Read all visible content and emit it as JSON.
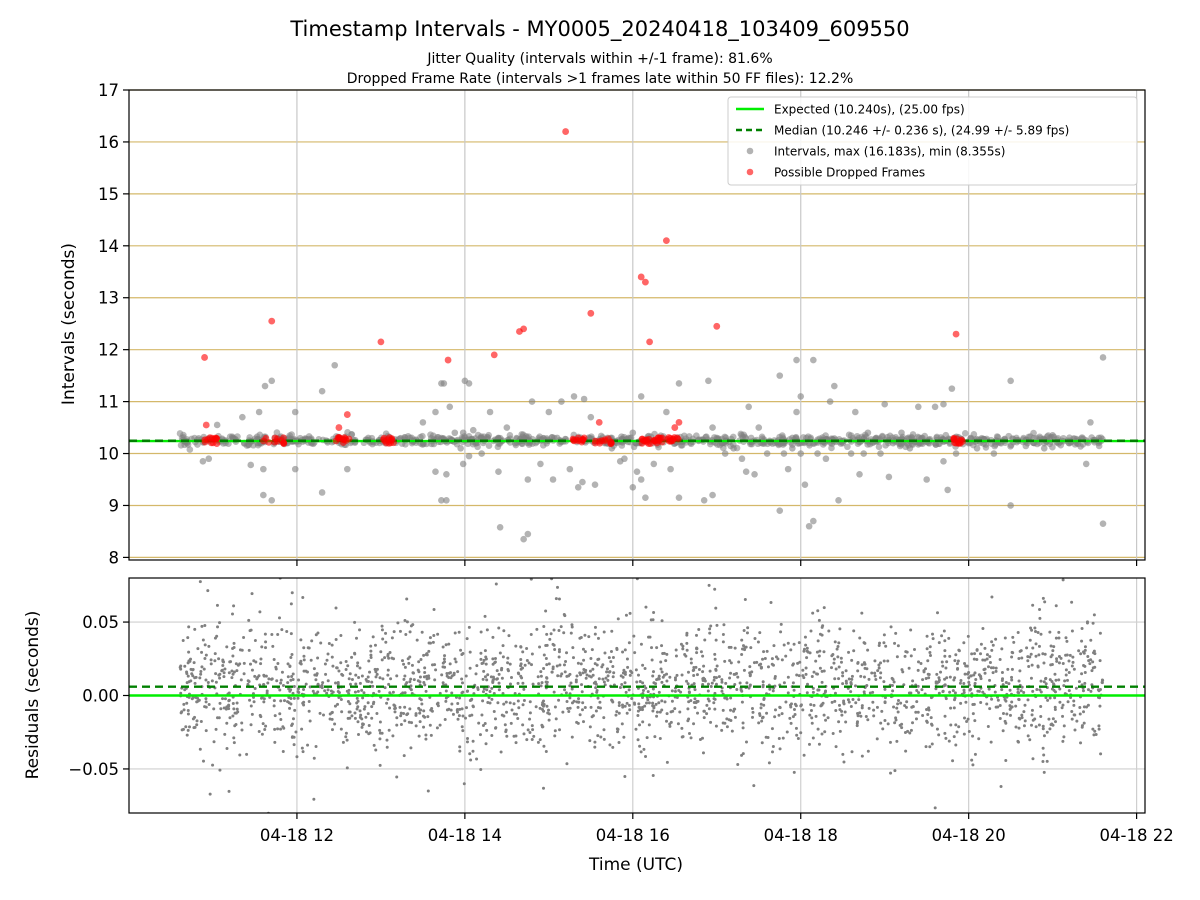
{
  "chart_data": [
    {
      "type": "scatter",
      "title": "Timestamp Intervals - MY0005_20240418_103409_609550",
      "subtitle_lines": [
        "Jitter Quality (intervals within +/-1 frame): 81.6%",
        "Dropped Frame Rate (intervals >1 frames late within 50 FF files): 12.2%"
      ],
      "xlabel": "",
      "ylabel": "Intervals (seconds)",
      "xlim": [
        10.0,
        22.1
      ],
      "ylim": [
        7.95,
        17.0
      ],
      "yticks": [
        8,
        9,
        10,
        11,
        12,
        13,
        14,
        15,
        16,
        17
      ],
      "xticks": [
        12,
        14,
        16,
        18,
        20,
        22
      ],
      "grid": "on (horizontal lines tan, vertical lines grey)",
      "legend_placement": "top-right",
      "reference_lines": [
        {
          "name": "Expected (10.240s), (25.00 fps)",
          "y": 10.24,
          "color": "#00ee00",
          "style": "solid"
        },
        {
          "name": "Median (10.246 +/- 0.236 s), (24.99 +/- 5.89 fps)",
          "y": 10.246,
          "color": "#008000",
          "style": "dashed"
        }
      ],
      "series": [
        {
          "name": "Intervals, max (16.183s), min (8.355s)",
          "color": "#808080",
          "baseline": 10.25,
          "x_range": [
            10.6,
            21.6
          ],
          "outliers": [
            [
              10.88,
              9.85
            ],
            [
              10.95,
              9.9
            ],
            [
              11.05,
              10.55
            ],
            [
              11.35,
              10.7
            ],
            [
              11.45,
              9.78
            ],
            [
              11.6,
              9.2
            ],
            [
              11.55,
              10.8
            ],
            [
              11.7,
              9.1
            ],
            [
              11.62,
              11.3
            ],
            [
              11.7,
              11.4
            ],
            [
              11.6,
              9.7
            ],
            [
              11.98,
              10.8
            ],
            [
              11.98,
              9.7
            ],
            [
              12.3,
              11.2
            ],
            [
              12.3,
              9.25
            ],
            [
              12.45,
              11.7
            ],
            [
              12.6,
              9.7
            ],
            [
              12.85,
              10.3
            ],
            [
              13.5,
              10.6
            ],
            [
              13.65,
              10.8
            ],
            [
              13.65,
              9.65
            ],
            [
              13.72,
              11.35
            ],
            [
              13.75,
              11.35
            ],
            [
              13.78,
              9.6
            ],
            [
              13.72,
              9.1
            ],
            [
              13.78,
              9.1
            ],
            [
              13.82,
              10.9
            ],
            [
              13.88,
              10.4
            ],
            [
              13.95,
              10.1
            ],
            [
              13.98,
              10.4
            ],
            [
              14.0,
              10.3
            ],
            [
              13.98,
              9.8
            ],
            [
              14.05,
              9.95
            ],
            [
              14.0,
              11.4
            ],
            [
              14.05,
              11.35
            ],
            [
              14.1,
              10.45
            ],
            [
              14.2,
              10.0
            ],
            [
              14.3,
              10.8
            ],
            [
              14.4,
              9.65
            ],
            [
              14.4,
              10.3
            ],
            [
              14.42,
              8.58
            ],
            [
              14.5,
              10.5
            ],
            [
              14.6,
              10.2
            ],
            [
              14.75,
              9.5
            ],
            [
              14.8,
              11.0
            ],
            [
              14.7,
              8.35
            ],
            [
              14.75,
              8.45
            ],
            [
              14.9,
              9.8
            ],
            [
              15.0,
              10.8
            ],
            [
              15.05,
              9.5
            ],
            [
              15.1,
              10.3
            ],
            [
              15.15,
              11.0
            ],
            [
              15.25,
              9.7
            ],
            [
              15.3,
              11.1
            ],
            [
              15.35,
              9.35
            ],
            [
              15.4,
              9.45
            ],
            [
              15.42,
              11.05
            ],
            [
              15.5,
              10.7
            ],
            [
              15.55,
              9.4
            ],
            [
              15.7,
              10.3
            ],
            [
              15.75,
              10.1
            ],
            [
              15.85,
              9.85
            ],
            [
              15.9,
              9.9
            ],
            [
              15.95,
              10.3
            ],
            [
              16.0,
              10.4
            ],
            [
              16.05,
              9.65
            ],
            [
              16.1,
              11.1
            ],
            [
              16.0,
              9.35
            ],
            [
              16.1,
              9.5
            ],
            [
              16.15,
              9.15
            ],
            [
              16.25,
              9.8
            ],
            [
              16.4,
              10.8
            ],
            [
              16.45,
              9.7
            ],
            [
              16.5,
              10.2
            ],
            [
              16.55,
              11.35
            ],
            [
              16.55,
              9.15
            ],
            [
              16.9,
              11.4
            ],
            [
              16.95,
              10.5
            ],
            [
              16.85,
              9.1
            ],
            [
              16.95,
              9.2
            ],
            [
              17.0,
              10.3
            ],
            [
              17.1,
              10.0
            ],
            [
              17.2,
              10.1
            ],
            [
              17.3,
              9.9
            ],
            [
              17.35,
              9.65
            ],
            [
              17.38,
              10.9
            ],
            [
              17.45,
              9.6
            ],
            [
              17.5,
              10.5
            ],
            [
              17.6,
              10.0
            ],
            [
              17.75,
              11.5
            ],
            [
              17.8,
              10.0
            ],
            [
              17.85,
              9.7
            ],
            [
              17.9,
              10.3
            ],
            [
              17.95,
              10.8
            ],
            [
              17.75,
              8.9
            ],
            [
              17.9,
              10.1
            ],
            [
              18.0,
              10.0
            ],
            [
              18.1,
              10.2
            ],
            [
              17.95,
              11.8
            ],
            [
              18.15,
              11.8
            ],
            [
              18.0,
              11.1
            ],
            [
              18.05,
              9.4
            ],
            [
              18.1,
              8.6
            ],
            [
              18.15,
              8.7
            ],
            [
              18.2,
              10.0
            ],
            [
              18.3,
              9.9
            ],
            [
              18.35,
              11.0
            ],
            [
              18.4,
              11.3
            ],
            [
              18.45,
              9.1
            ],
            [
              18.5,
              10.2
            ],
            [
              18.6,
              10.0
            ],
            [
              18.65,
              10.8
            ],
            [
              18.7,
              9.6
            ],
            [
              18.75,
              10.0
            ],
            [
              18.8,
              10.4
            ],
            [
              18.9,
              10.3
            ],
            [
              18.95,
              10.0
            ],
            [
              19.0,
              10.95
            ],
            [
              19.05,
              9.55
            ],
            [
              19.1,
              10.2
            ],
            [
              19.2,
              10.4
            ],
            [
              19.3,
              10.1
            ],
            [
              19.4,
              10.9
            ],
            [
              19.5,
              9.5
            ],
            [
              19.6,
              10.9
            ],
            [
              19.7,
              9.85
            ],
            [
              19.7,
              10.95
            ],
            [
              19.75,
              9.3
            ],
            [
              19.8,
              11.25
            ],
            [
              19.85,
              10.0
            ],
            [
              20.0,
              10.2
            ],
            [
              20.1,
              10.1
            ],
            [
              20.3,
              10.0
            ],
            [
              20.5,
              9.0
            ],
            [
              20.5,
              11.4
            ],
            [
              20.7,
              10.2
            ],
            [
              20.9,
              10.1
            ],
            [
              21.0,
              10.35
            ],
            [
              21.2,
              10.2
            ],
            [
              21.4,
              9.8
            ],
            [
              21.45,
              10.6
            ],
            [
              21.6,
              11.85
            ],
            [
              21.6,
              8.65
            ],
            [
              21.55,
              10.3
            ]
          ]
        },
        {
          "name": "Possible Dropped Frames",
          "color": "#ff0000",
          "points": [
            [
              10.9,
              11.85
            ],
            [
              10.92,
              10.55
            ],
            [
              11.7,
              12.55
            ],
            [
              12.5,
              10.5
            ],
            [
              12.6,
              10.75
            ],
            [
              13.0,
              12.15
            ],
            [
              13.8,
              11.8
            ],
            [
              14.35,
              11.9
            ],
            [
              14.65,
              12.35
            ],
            [
              14.7,
              12.4
            ],
            [
              15.2,
              16.2
            ],
            [
              15.5,
              12.7
            ],
            [
              15.6,
              10.6
            ],
            [
              16.1,
              13.4
            ],
            [
              16.15,
              13.3
            ],
            [
              16.2,
              12.15
            ],
            [
              16.35,
              10.3
            ],
            [
              16.4,
              14.1
            ],
            [
              16.5,
              10.5
            ],
            [
              16.55,
              10.6
            ],
            [
              17.0,
              12.45
            ],
            [
              19.85,
              12.3
            ]
          ],
          "baseline_clusters": [
            [
              10.9,
              11.05
            ],
            [
              11.6,
              11.85
            ],
            [
              12.45,
              12.65
            ],
            [
              13.0,
              13.15
            ],
            [
              15.25,
              15.5
            ],
            [
              15.55,
              15.75
            ],
            [
              16.1,
              16.25
            ],
            [
              16.25,
              16.35
            ],
            [
              16.4,
              16.55
            ],
            [
              19.8,
              19.95
            ]
          ],
          "baseline_y": 10.25
        }
      ]
    },
    {
      "type": "scatter",
      "title": "",
      "xlabel": "Time (UTC)",
      "ylabel": "Residuals (seconds)",
      "xlim": [
        10.0,
        22.1
      ],
      "ylim": [
        -0.08,
        0.08
      ],
      "yticks": [
        0.05,
        0.0,
        -0.05
      ],
      "ytick_labels": [
        "0.05",
        "0.00",
        "−0.05"
      ],
      "xticks": [
        12,
        14,
        16,
        18,
        20,
        22
      ],
      "xtick_labels": [
        "04-18 12",
        "04-18 14",
        "04-18 16",
        "04-18 18",
        "04-18 20",
        "04-18 22"
      ],
      "grid": "on",
      "reference_lines": [
        {
          "y": 0.0,
          "color": "#00ee00",
          "style": "solid"
        },
        {
          "y": 0.006,
          "color": "#008000",
          "style": "dashed"
        }
      ],
      "series": [
        {
          "color": "#808080",
          "x_range": [
            10.6,
            21.6
          ],
          "spread_std": 0.022,
          "point_count": 2400
        }
      ]
    }
  ],
  "legend": {
    "items": [
      {
        "label": "Expected (10.240s), (25.00 fps)",
        "kind": "line",
        "color": "#00ee00"
      },
      {
        "label": "Median (10.246 +/- 0.236 s), (24.99 +/- 5.89 fps)",
        "kind": "dashed",
        "color": "#008000"
      },
      {
        "label": "Intervals, max (16.183s), min (8.355s)",
        "kind": "dot",
        "color": "#808080"
      },
      {
        "label": "Possible Dropped Frames",
        "kind": "dot",
        "color": "#ff0000"
      }
    ]
  }
}
